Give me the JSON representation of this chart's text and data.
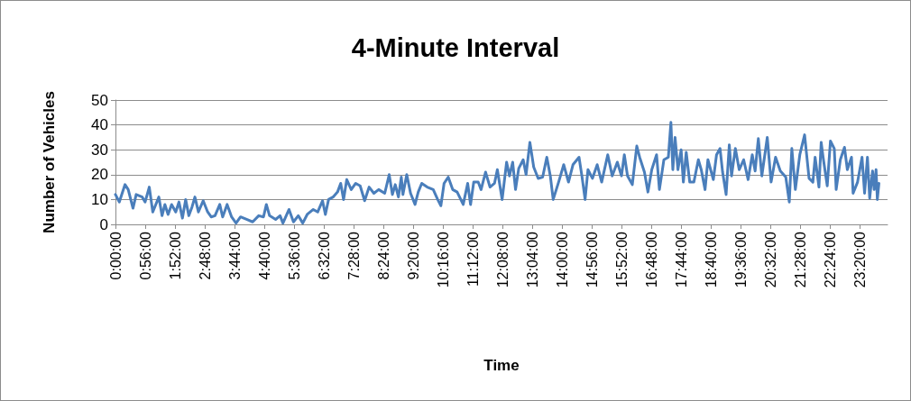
{
  "chart_data": {
    "type": "line",
    "title": "4-Minute Interval",
    "xlabel": "Time",
    "ylabel": "Number of Vehicles",
    "xlim": [
      0,
      24.2
    ],
    "xticks": [
      {
        "value": 0,
        "label": "0:00:00"
      },
      {
        "value": 0.9333333333,
        "label": "0:56:00"
      },
      {
        "value": 1.8666666667,
        "label": "1:52:00"
      },
      {
        "value": 2.8,
        "label": "2:48:00"
      },
      {
        "value": 3.7333333333,
        "label": "3:44:00"
      },
      {
        "value": 4.6666666667,
        "label": "4:40:00"
      },
      {
        "value": 5.6,
        "label": "5:36:00"
      },
      {
        "value": 6.5333333333,
        "label": "6:32:00"
      },
      {
        "value": 7.4666666667,
        "label": "7:28:00"
      },
      {
        "value": 8.4,
        "label": "8:24:00"
      },
      {
        "value": 9.3333333333,
        "label": "9:20:00"
      },
      {
        "value": 10.2666666667,
        "label": "10:16:00"
      },
      {
        "value": 11.2,
        "label": "11:12:00"
      },
      {
        "value": 12.1333333333,
        "label": "12:08:00"
      },
      {
        "value": 13.0666666667,
        "label": "13:04:00"
      },
      {
        "value": 14,
        "label": "14:00:00"
      },
      {
        "value": 14.9333333333,
        "label": "14:56:00"
      },
      {
        "value": 15.8666666667,
        "label": "15:52:00"
      },
      {
        "value": 16.8,
        "label": "16:48:00"
      },
      {
        "value": 17.7333333333,
        "label": "17:44:00"
      },
      {
        "value": 18.6666666667,
        "label": "18:40:00"
      },
      {
        "value": 19.6,
        "label": "19:36:00"
      },
      {
        "value": 20.5333333333,
        "label": "20:32:00"
      },
      {
        "value": 21.4666666667,
        "label": "21:28:00"
      },
      {
        "value": 22.4,
        "label": "22:24:00"
      },
      {
        "value": 23.3333333333,
        "label": "23:20:00"
      }
    ],
    "ylim": [
      0,
      50
    ],
    "yticks": [
      0,
      10,
      20,
      30,
      40,
      50
    ],
    "grid": "y",
    "marker": "none",
    "line_style": "solid",
    "x": [
      0,
      0.12,
      0.3,
      0.4,
      0.55,
      0.65,
      0.84,
      0.93,
      1.06,
      1.17,
      1.36,
      1.46,
      1.55,
      1.65,
      1.76,
      1.89,
      1.99,
      2.1,
      2.2,
      2.3,
      2.4,
      2.49,
      2.6,
      2.75,
      2.89,
      3.0,
      3.12,
      3.27,
      3.36,
      3.5,
      3.64,
      3.78,
      3.92,
      4.11,
      4.3,
      4.49,
      4.64,
      4.73,
      4.83,
      5.02,
      5.16,
      5.25,
      5.44,
      5.58,
      5.73,
      5.87,
      6.01,
      6.2,
      6.34,
      6.49,
      6.58,
      6.68,
      6.82,
      6.96,
      7.06,
      7.15,
      7.25,
      7.39,
      7.53,
      7.67,
      7.81,
      7.95,
      8.1,
      8.25,
      8.44,
      8.58,
      8.68,
      8.77,
      8.87,
      8.96,
      9.01,
      9.13,
      9.25,
      9.39,
      9.49,
      9.6,
      9.77,
      9.96,
      10.1,
      10.2,
      10.3,
      10.43,
      10.57,
      10.71,
      10.9,
      11.04,
      11.13,
      11.23,
      11.37,
      11.46,
      11.6,
      11.74,
      11.88,
      11.97,
      12.12,
      12.26,
      12.35,
      12.45,
      12.54,
      12.64,
      12.78,
      12.87,
      12.99,
      13.11,
      13.25,
      13.39,
      13.52,
      13.63,
      13.72,
      13.89,
      14.05,
      14.2,
      14.34,
      14.53,
      14.62,
      14.72,
      14.81,
      14.95,
      15.1,
      15.24,
      15.43,
      15.57,
      15.73,
      15.86,
      15.95,
      16.05,
      16.2,
      16.34,
      16.43,
      16.58,
      16.69,
      16.81,
      16.96,
      17.05,
      17.19,
      17.33,
      17.41,
      17.47,
      17.54,
      17.63,
      17.73,
      17.8,
      17.89,
      18.0,
      18.13,
      18.27,
      18.36,
      18.48,
      18.57,
      18.74,
      18.84,
      18.95,
      19.03,
      19.14,
      19.24,
      19.31,
      19.43,
      19.55,
      19.69,
      19.83,
      19.96,
      20.05,
      20.15,
      20.26,
      20.43,
      20.55,
      20.69,
      20.84,
      21.01,
      21.12,
      21.2,
      21.31,
      21.45,
      21.6,
      21.74,
      21.86,
      21.93,
      22.05,
      22.12,
      22.18,
      22.31,
      22.41,
      22.53,
      22.59,
      22.72,
      22.85,
      22.94,
      23.07,
      23.12,
      23.26,
      23.4,
      23.48,
      23.57,
      23.64,
      23.73,
      23.78,
      23.84,
      23.88,
      23.93
    ],
    "series": [
      {
        "color": "#4a7ebb",
        "values": [
          12,
          9,
          16,
          14,
          6.5,
          12,
          11,
          9,
          15,
          5,
          11,
          3.5,
          8,
          4,
          8,
          5,
          9,
          2.5,
          10,
          3.5,
          7,
          11,
          5,
          9.5,
          5,
          3,
          3.5,
          8,
          3,
          8,
          3,
          0.5,
          3,
          2,
          1,
          3.5,
          3,
          8,
          3.5,
          2,
          3.5,
          0.5,
          6,
          1,
          3.5,
          0.5,
          4,
          6,
          5,
          9.5,
          4,
          10,
          11,
          13,
          16.5,
          10,
          18,
          14,
          16.5,
          15.5,
          9.5,
          15,
          12.5,
          14,
          12.5,
          20,
          12,
          16,
          11,
          19,
          12,
          20,
          12.5,
          8,
          13,
          16.5,
          15,
          14,
          10,
          7.5,
          16.5,
          19,
          14,
          13,
          8,
          16.5,
          8,
          17,
          17,
          14,
          21,
          15,
          16.5,
          22,
          10,
          25,
          19.5,
          25,
          14,
          22.5,
          26,
          20,
          33,
          23,
          18.5,
          19,
          27,
          19.5,
          10,
          17,
          24,
          17,
          24,
          27,
          19.5,
          10,
          22,
          18.5,
          24,
          17,
          28,
          19.5,
          25,
          19.5,
          28,
          19.5,
          16,
          31.5,
          27,
          21,
          13,
          22,
          28,
          14,
          26,
          27,
          41,
          22,
          35,
          22,
          30,
          17,
          29,
          17,
          17,
          26,
          22,
          14,
          26,
          18,
          28,
          30.5,
          21,
          12,
          32,
          19.5,
          30.5,
          22,
          26,
          18,
          28,
          21.5,
          34.5,
          19.5,
          35,
          17,
          27,
          21.5,
          19,
          9,
          30.5,
          14,
          28,
          36,
          18.5,
          17,
          27,
          15,
          33,
          27,
          15.5,
          33.5,
          30.5,
          14,
          26,
          31,
          22,
          27,
          12.5,
          17,
          27,
          12.5,
          27,
          10.5,
          21.5,
          14,
          22,
          10,
          16.5
        ]
      }
    ]
  }
}
